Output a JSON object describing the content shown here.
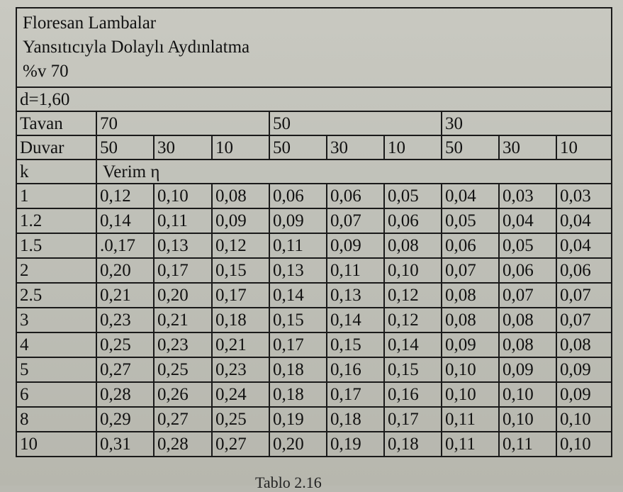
{
  "title_lines": [
    "Floresan Lambalar",
    "Yansıtıcıyla Dolaylı Aydınlatma",
    "%v 70"
  ],
  "d_value": "d=1,60",
  "tavan_label": "Tavan",
  "tavan_values": [
    "70",
    "50",
    "30"
  ],
  "duvar_label": "Duvar",
  "duvar_values": [
    "50",
    "30",
    "10",
    "50",
    "30",
    "10",
    "50",
    "30",
    "10"
  ],
  "k_label": "k",
  "verim_label": "Verim η",
  "rows": [
    {
      "k": "1",
      "vals": [
        "0,12",
        "0,10",
        "0,08",
        "0,06",
        "0,06",
        "0,05",
        "0,04",
        "0,03",
        "0,03"
      ]
    },
    {
      "k": "1.2",
      "vals": [
        "0,14",
        "0,11",
        "0,09",
        "0,09",
        "0,07",
        "0,06",
        "0,05",
        "0,04",
        "0,04"
      ]
    },
    {
      "k": "1.5",
      "vals": [
        ".0,17",
        "0,13",
        "0,12",
        "0,11",
        "0,09",
        "0,08",
        "0,06",
        "0,05",
        "0,04"
      ]
    },
    {
      "k": "2",
      "vals": [
        "0,20",
        "0,17",
        "0,15",
        "0,13",
        "0,11",
        "0,10",
        "0,07",
        "0,06",
        "0,06"
      ]
    },
    {
      "k": "2.5",
      "vals": [
        "0,21",
        "0,20",
        "0,17",
        "0,14",
        "0,13",
        "0,12",
        "0,08",
        "0,07",
        "0,07"
      ]
    },
    {
      "k": "3",
      "vals": [
        "0,23",
        "0,21",
        "0,18",
        "0,15",
        "0,14",
        "0,12",
        "0,08",
        "0,08",
        "0,07"
      ]
    },
    {
      "k": "4",
      "vals": [
        "0,25",
        "0,23",
        "0,21",
        "0,17",
        "0,15",
        "0,14",
        "0,09",
        "0,08",
        "0,08"
      ]
    },
    {
      "k": "5",
      "vals": [
        "0,27",
        "0,25",
        "0,23",
        "0,18",
        "0,16",
        "0,15",
        "0,10",
        "0,09",
        "0,09"
      ]
    },
    {
      "k": "6",
      "vals": [
        "0,28",
        "0,26",
        "0,24",
        "0,18",
        "0,17",
        "0,16",
        "0,10",
        "0,10",
        "0,09"
      ]
    },
    {
      "k": "8",
      "vals": [
        "0,29",
        "0,27",
        "0,25",
        "0,19",
        "0,18",
        "0,17",
        "0,11",
        "0,10",
        "0,10"
      ]
    },
    {
      "k": "10",
      "vals": [
        "0,31",
        "0,28",
        "0,27",
        "0,20",
        "0,19",
        "0,18",
        "0,11",
        "0,11",
        "0,10"
      ]
    }
  ],
  "caption": "Tablo 2.16"
}
